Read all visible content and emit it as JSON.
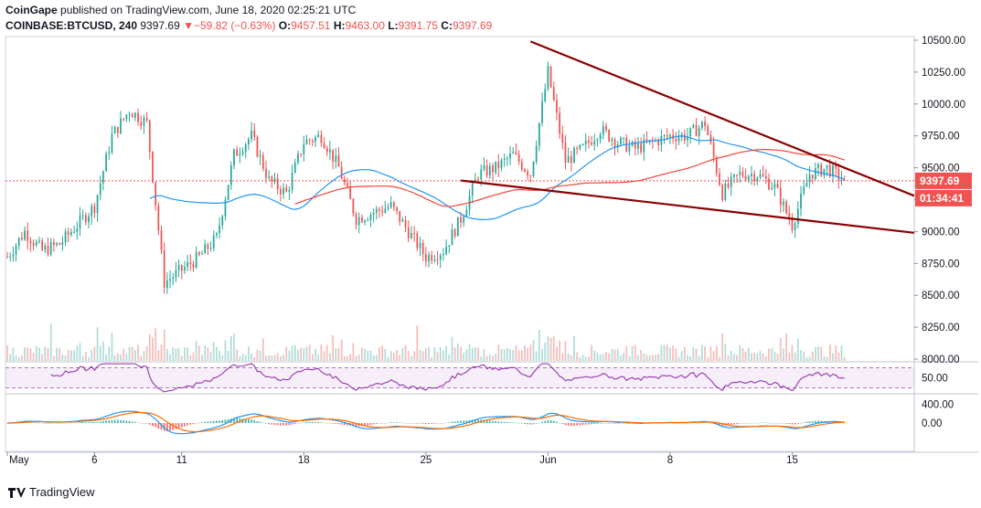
{
  "header": {
    "publisher": "CoinGape",
    "published_text": "published on TradingView.com, June 18, 2020 02:25:21 UTC",
    "symbol": "COINBASE:BTCUSD, 240",
    "last": "9397.69",
    "change_arrow": "▼",
    "change": "−59.82 (−0.63%)",
    "open_label": "O:",
    "open": "9457.51",
    "high_label": "H:",
    "high": "9463.00",
    "low_label": "L:",
    "low": "9391.75",
    "close_label": "C:",
    "close": "9397.69"
  },
  "price_badge": "9397.69",
  "countdown_badge": "01:34:41",
  "footer": {
    "brand": "TradingView"
  },
  "colors": {
    "up": "#26a69a",
    "down": "#ef5350",
    "trendline": "#8b0000",
    "ma_fast": "#2196f3",
    "ma_slow": "#f44336",
    "rsi": "#8e24aa",
    "macd": "#2196f3",
    "signal": "#ff6d00"
  },
  "chart_data": [
    {
      "type": "candlestick",
      "title": "",
      "y_ticks": [
        "10500.00",
        "10250.00",
        "10000.00",
        "9750.00",
        "9500.00",
        "9250.00",
        "9000.00",
        "8750.00",
        "8500.00",
        "8250.00",
        "8000.00"
      ],
      "ylim": [
        8000,
        10500
      ],
      "x_ticks": [
        "May",
        "6",
        "11",
        "18",
        "25",
        "Jun",
        "8",
        "15"
      ],
      "last_price": 9397.69,
      "series": [
        {
          "name": "",
          "type": "ma_fast"
        },
        {
          "name": "",
          "type": "ma_slow"
        }
      ],
      "price_path": [
        [
          "May 1",
          8800
        ],
        [
          "May 2",
          9000
        ],
        [
          "May 3",
          8850
        ],
        [
          "May 4",
          8900
        ],
        [
          "May 5",
          9050
        ],
        [
          "May 6",
          9200
        ],
        [
          "May 7",
          9750
        ],
        [
          "May 8",
          9950
        ],
        [
          "May 9",
          9850
        ],
        [
          "May 10",
          8600
        ],
        [
          "May 11",
          8700
        ],
        [
          "May 12",
          8800
        ],
        [
          "May 13",
          8950
        ],
        [
          "May 14",
          9600
        ],
        [
          "May 15",
          9750
        ],
        [
          "May 16",
          9400
        ],
        [
          "May 17",
          9300
        ],
        [
          "May 18",
          9700
        ],
        [
          "May 19",
          9750
        ],
        [
          "May 20",
          9500
        ],
        [
          "May 21",
          9100
        ],
        [
          "May 22",
          9150
        ],
        [
          "May 23",
          9200
        ],
        [
          "May 24",
          9000
        ],
        [
          "May 25",
          8800
        ],
        [
          "May 26",
          8850
        ],
        [
          "May 27",
          9100
        ],
        [
          "May 28",
          9450
        ],
        [
          "May 29",
          9500
        ],
        [
          "May 30",
          9600
        ],
        [
          "May 31",
          9450
        ],
        [
          "Jun 1",
          10250
        ],
        [
          "Jun 2",
          9550
        ],
        [
          "Jun 3",
          9650
        ],
        [
          "Jun 4",
          9800
        ],
        [
          "Jun 5",
          9700
        ],
        [
          "Jun 6",
          9650
        ],
        [
          "Jun 7",
          9700
        ],
        [
          "Jun 8",
          9750
        ],
        [
          "Jun 9",
          9750
        ],
        [
          "Jun 10",
          9850
        ],
        [
          "Jun 11",
          9300
        ],
        [
          "Jun 12",
          9450
        ],
        [
          "Jun 13",
          9450
        ],
        [
          "Jun 14",
          9350
        ],
        [
          "Jun 15",
          9050
        ],
        [
          "Jun 16",
          9450
        ],
        [
          "Jun 17",
          9500
        ],
        [
          "Jun 18",
          9397.69
        ]
      ],
      "trendlines": [
        {
          "name": "upper",
          "from": [
            "May 31",
            10490
          ],
          "to": [
            "Jun 22",
            9280
          ]
        },
        {
          "name": "lower",
          "from": [
            "May 27",
            9400
          ],
          "to": [
            "Jun 22",
            8990
          ]
        }
      ]
    },
    {
      "type": "line",
      "title": "",
      "y_ticks": [
        "50.00"
      ],
      "ylim": [
        20,
        80
      ]
    },
    {
      "type": "bar",
      "title": "",
      "y_ticks": [
        "400.00",
        "0.00"
      ],
      "ylim": [
        -600,
        600
      ]
    }
  ]
}
